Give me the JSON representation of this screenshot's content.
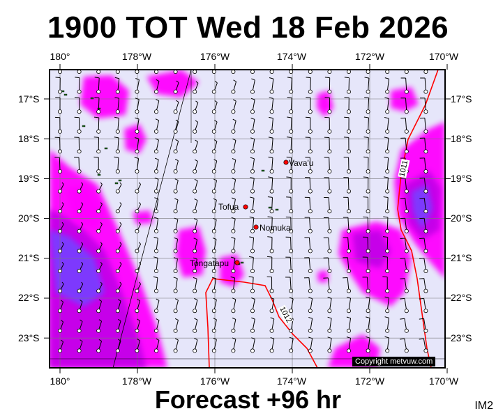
{
  "header": {
    "title": "1900 TOT Wed 18 Feb 2026"
  },
  "footer": {
    "subtitle": "Forecast +96 hr",
    "image_id": "IM2"
  },
  "map": {
    "lon_labels": [
      "180°",
      "178°W",
      "176°W",
      "174°W",
      "172°W",
      "170°W"
    ],
    "lat_labels": [
      "17°S",
      "18°S",
      "19°S",
      "20°S",
      "21°S",
      "22°S",
      "23°S"
    ],
    "places": [
      "Vava'u",
      "Tofua",
      "Nomuka",
      "Tongatapu"
    ],
    "line_labels": [
      "1011",
      "1012"
    ],
    "copyright": "Copyright metvuw.com"
  },
  "colors": {
    "background": "#e6e6fa",
    "wind_light": "#ff00ff",
    "wind_mid": "#c400e8",
    "wind_strong": "#7a3cff",
    "isobar": "#ff0000",
    "marker": "#ff0000"
  },
  "icons": {
    "island_marker": "red-dot-icon",
    "wind_barb": "wind-barb-icon"
  }
}
